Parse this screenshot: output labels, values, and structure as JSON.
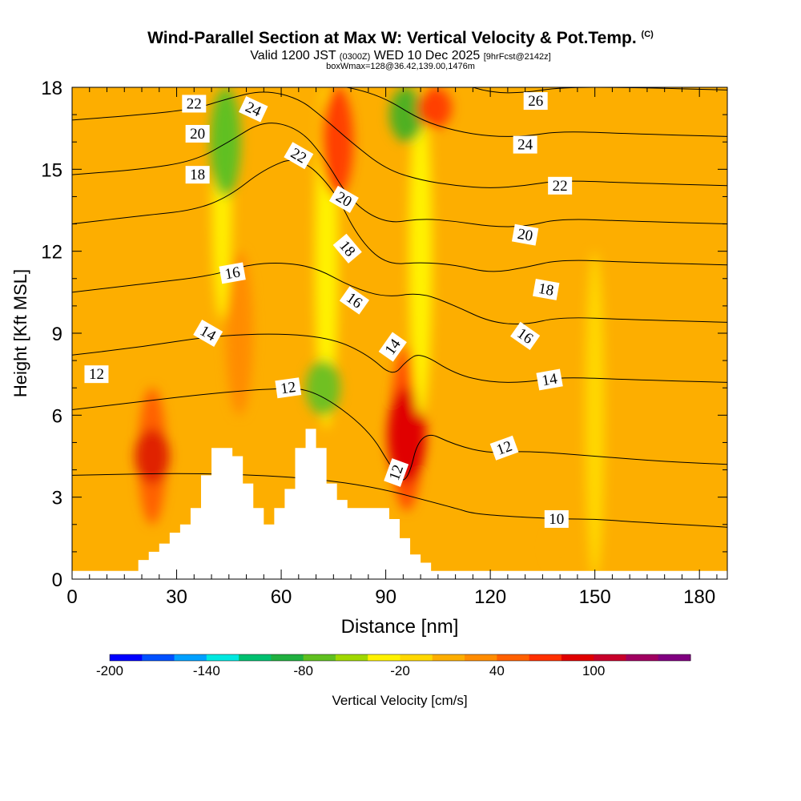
{
  "header": {
    "title": "Wind-Parallel Section at Max W: Vertical Velocity & Pot.Temp.",
    "title_mark": "(C)",
    "valid_prefix": "Valid 1200 JST",
    "valid_utc": "(0300Z)",
    "valid_date": "WED 10 Dec 2025",
    "forecast_tag": "[9hrFcst@2142z]",
    "box_info": "boxWmax=128@36.42,139.00,1476m"
  },
  "chart_data": {
    "type": "heatmap",
    "title": "Wind-Parallel Section at Max W: Vertical Velocity & Pot.Temp.",
    "xlabel": "Distance [nm]",
    "ylabel": "Height [Kft MSL]",
    "xlim": [
      0,
      188
    ],
    "ylim": [
      0,
      18
    ],
    "x_ticks": [
      0,
      30,
      60,
      90,
      120,
      150,
      180
    ],
    "y_ticks": [
      0,
      3,
      6,
      9,
      12,
      15,
      18
    ],
    "background_color": "#fdae00",
    "vertical_velocity_features": [
      {
        "x": 23,
        "y_bottom": 2,
        "y_top": 7,
        "w": 45,
        "color": "#ff6000"
      },
      {
        "x": 23,
        "y_bottom": 3.5,
        "y_top": 5.5,
        "w": 80,
        "color": "#e02000"
      },
      {
        "x": 48,
        "y_bottom": 6,
        "y_top": 12,
        "w": 40,
        "color": "#ff8c00"
      },
      {
        "x": 43,
        "y_bottom": 9.5,
        "y_top": 18,
        "w": 5,
        "color": "#ffee00"
      },
      {
        "x": 44,
        "y_bottom": 14,
        "y_top": 18,
        "w": -60,
        "color": "#60c020"
      },
      {
        "x": 73,
        "y_bottom": 5.5,
        "y_top": 18,
        "w": -20,
        "color": "#fff200"
      },
      {
        "x": 72,
        "y_bottom": 6,
        "y_top": 8,
        "w": -80,
        "color": "#70c020"
      },
      {
        "x": 76,
        "y_bottom": 14,
        "y_top": 18,
        "w": 70,
        "color": "#ff4000"
      },
      {
        "x": 96,
        "y_bottom": 2.5,
        "y_top": 8.5,
        "w": 70,
        "color": "#ff5000"
      },
      {
        "x": 96,
        "y_bottom": 3.5,
        "y_top": 7,
        "w": 100,
        "color": "#e00000"
      },
      {
        "x": 100,
        "y_bottom": 6,
        "y_top": 18,
        "w": -20,
        "color": "#fff200"
      },
      {
        "x": 96,
        "y_bottom": 16,
        "y_top": 18,
        "w": -80,
        "color": "#50b020"
      },
      {
        "x": 104,
        "y_bottom": 16.5,
        "y_top": 18,
        "w": 80,
        "color": "#ff4000"
      },
      {
        "x": 150,
        "y_bottom": 0,
        "y_top": 12,
        "w": 0,
        "color": "#ffd800"
      },
      {
        "x": 140,
        "y_bottom": 0.5,
        "y_top": 1.8,
        "w": 30,
        "color": "#fdae00"
      }
    ],
    "terrain_profile": {
      "x": [
        0,
        19,
        19,
        22,
        22,
        25,
        25,
        28,
        28,
        31,
        31,
        34,
        34,
        37,
        37,
        40,
        40,
        46,
        46,
        49,
        49,
        52,
        52,
        55,
        55,
        58,
        58,
        61,
        61,
        64,
        64,
        67,
        67,
        70,
        70,
        73,
        73,
        76,
        76,
        79,
        79,
        82,
        82,
        85,
        85,
        88,
        88,
        91,
        91,
        94,
        94,
        97,
        97,
        100,
        100,
        103,
        103,
        106,
        106,
        188
      ],
      "y": [
        0.3,
        0.3,
        0.7,
        0.7,
        1.0,
        1.0,
        1.3,
        1.3,
        1.7,
        1.7,
        2.0,
        2.0,
        2.6,
        2.6,
        3.8,
        3.8,
        4.8,
        4.8,
        4.5,
        4.5,
        3.5,
        3.5,
        2.6,
        2.6,
        2.0,
        2.0,
        2.6,
        2.6,
        3.3,
        3.3,
        4.8,
        4.8,
        5.5,
        5.5,
        4.8,
        4.8,
        3.5,
        3.5,
        2.9,
        2.9,
        2.6,
        2.6,
        2.6,
        2.6,
        2.6,
        2.6,
        2.6,
        2.6,
        2.2,
        2.2,
        1.5,
        1.5,
        0.9,
        0.9,
        0.6,
        0.6,
        0.3,
        0.3,
        0.3,
        0.3
      ]
    },
    "potential_temperature_contours": [
      {
        "theta": 10,
        "x": [
          0,
          40,
          80,
          110,
          115,
          125,
          140,
          150,
          160,
          175,
          188
        ],
        "y": [
          3.8,
          3.9,
          3.6,
          2.6,
          2.4,
          2.3,
          2.2,
          2.2,
          2.1,
          2.0,
          1.9
        ]
      },
      {
        "theta": 12,
        "x": [
          0,
          20,
          40,
          60,
          70,
          85,
          92,
          96,
          100,
          110,
          120,
          130,
          150,
          170,
          188
        ],
        "y": [
          6.2,
          6.5,
          6.8,
          7.0,
          6.9,
          5.5,
          4.0,
          3.4,
          5.5,
          4.9,
          4.6,
          4.7,
          4.5,
          4.3,
          4.2
        ]
      },
      {
        "theta": 14,
        "x": [
          0,
          20,
          40,
          60,
          75,
          85,
          92,
          96,
          100,
          110,
          120,
          130,
          140,
          160,
          188
        ],
        "y": [
          8.2,
          8.5,
          8.9,
          9.0,
          8.8,
          8.2,
          7.4,
          8.0,
          8.3,
          7.5,
          7.2,
          7.2,
          7.4,
          7.3,
          7.2
        ]
      },
      {
        "theta": 16,
        "x": [
          0,
          20,
          40,
          50,
          60,
          70,
          80,
          90,
          100,
          110,
          120,
          130,
          140,
          160,
          188
        ],
        "y": [
          10.5,
          10.8,
          11.1,
          11.5,
          11.6,
          11.4,
          10.7,
          10.3,
          10.5,
          10.0,
          9.4,
          9.3,
          9.6,
          9.5,
          9.4
        ]
      },
      {
        "theta": 18,
        "x": [
          0,
          20,
          35,
          45,
          55,
          65,
          75,
          82,
          90,
          100,
          110,
          120,
          130,
          140,
          160,
          188
        ],
        "y": [
          13.0,
          13.3,
          13.5,
          14.0,
          15.0,
          15.5,
          14.3,
          12.5,
          11.5,
          11.6,
          11.5,
          11.2,
          11.4,
          11.7,
          11.6,
          11.5
        ]
      },
      {
        "theta": 20,
        "x": [
          0,
          20,
          35,
          45,
          55,
          65,
          72,
          80,
          90,
          100,
          110,
          120,
          130,
          140,
          160,
          188
        ],
        "y": [
          14.8,
          15.0,
          15.3,
          16.0,
          16.8,
          16.5,
          15.5,
          13.8,
          13.0,
          13.2,
          13.1,
          12.9,
          12.9,
          13.2,
          13.1,
          13.0
        ]
      },
      {
        "theta": 22,
        "x": [
          0,
          20,
          35,
          45,
          55,
          65,
          72,
          80,
          90,
          100,
          110,
          120,
          130,
          140,
          160,
          188
        ],
        "y": [
          16.8,
          17.0,
          17.2,
          17.6,
          17.9,
          17.6,
          16.9,
          16.0,
          15.0,
          14.6,
          14.4,
          14.3,
          14.4,
          14.6,
          14.5,
          14.4
        ]
      },
      {
        "theta": 24,
        "x": [
          0,
          20,
          35,
          45,
          55,
          65,
          72,
          80,
          90,
          100,
          110,
          120,
          130,
          140,
          160,
          188
        ],
        "y": [
          18.6,
          18.6,
          18.6,
          18.4,
          18.3,
          18.2,
          18.1,
          18.0,
          17.6,
          16.8,
          16.4,
          16.2,
          16.2,
          16.4,
          16.3,
          16.2
        ]
      },
      {
        "theta": 26,
        "x": [
          0,
          60,
          90,
          100,
          110,
          120,
          130,
          140,
          160,
          188
        ],
        "y": [
          19.5,
          19.5,
          19.0,
          18.6,
          18.2,
          17.8,
          17.8,
          18.0,
          18.0,
          17.9
        ]
      }
    ],
    "contour_labels": [
      {
        "text": "10",
        "x": 139,
        "y": 2.2,
        "angle": 0
      },
      {
        "text": "12",
        "x": 7,
        "y": 7.5,
        "angle": 0
      },
      {
        "text": "12",
        "x": 62,
        "y": 7.0,
        "angle": -8
      },
      {
        "text": "12",
        "x": 93,
        "y": 3.9,
        "angle": -70
      },
      {
        "text": "12",
        "x": 124,
        "y": 4.8,
        "angle": -20
      },
      {
        "text": "14",
        "x": 39,
        "y": 9.0,
        "angle": 30
      },
      {
        "text": "14",
        "x": 92,
        "y": 8.5,
        "angle": -55
      },
      {
        "text": "14",
        "x": 137,
        "y": 7.3,
        "angle": -10
      },
      {
        "text": "16",
        "x": 46,
        "y": 11.2,
        "angle": -10
      },
      {
        "text": "16",
        "x": 81,
        "y": 10.2,
        "angle": 35
      },
      {
        "text": "16",
        "x": 130,
        "y": 8.9,
        "angle": 35
      },
      {
        "text": "18",
        "x": 36,
        "y": 14.8,
        "angle": 0
      },
      {
        "text": "18",
        "x": 79,
        "y": 12.1,
        "angle": 50
      },
      {
        "text": "18",
        "x": 136,
        "y": 10.6,
        "angle": 10
      },
      {
        "text": "20",
        "x": 36,
        "y": 16.3,
        "angle": 0
      },
      {
        "text": "20",
        "x": 78,
        "y": 13.9,
        "angle": 30
      },
      {
        "text": "20",
        "x": 130,
        "y": 12.6,
        "angle": 10
      },
      {
        "text": "22",
        "x": 35,
        "y": 17.4,
        "angle": 0
      },
      {
        "text": "22",
        "x": 65,
        "y": 15.5,
        "angle": 30
      },
      {
        "text": "22",
        "x": 140,
        "y": 14.4,
        "angle": 0
      },
      {
        "text": "24",
        "x": 52,
        "y": 17.2,
        "angle": 25
      },
      {
        "text": "24",
        "x": 130,
        "y": 15.9,
        "angle": 0
      },
      {
        "text": "26",
        "x": 133,
        "y": 17.5,
        "angle": 0
      }
    ],
    "colorbar": {
      "label": "Vertical Velocity [cm/s]",
      "tick_labels": [
        "-200",
        "-140",
        "-80",
        "-20",
        "40",
        "100"
      ],
      "colors": [
        "#0000ff",
        "#0050ff",
        "#00a0ff",
        "#00e8e0",
        "#00c070",
        "#20b040",
        "#60c020",
        "#a0d800",
        "#fff200",
        "#ffd800",
        "#fdae00",
        "#ff8c00",
        "#ff6000",
        "#ff3000",
        "#e00000",
        "#c8002a",
        "#a00060",
        "#800080"
      ]
    }
  }
}
